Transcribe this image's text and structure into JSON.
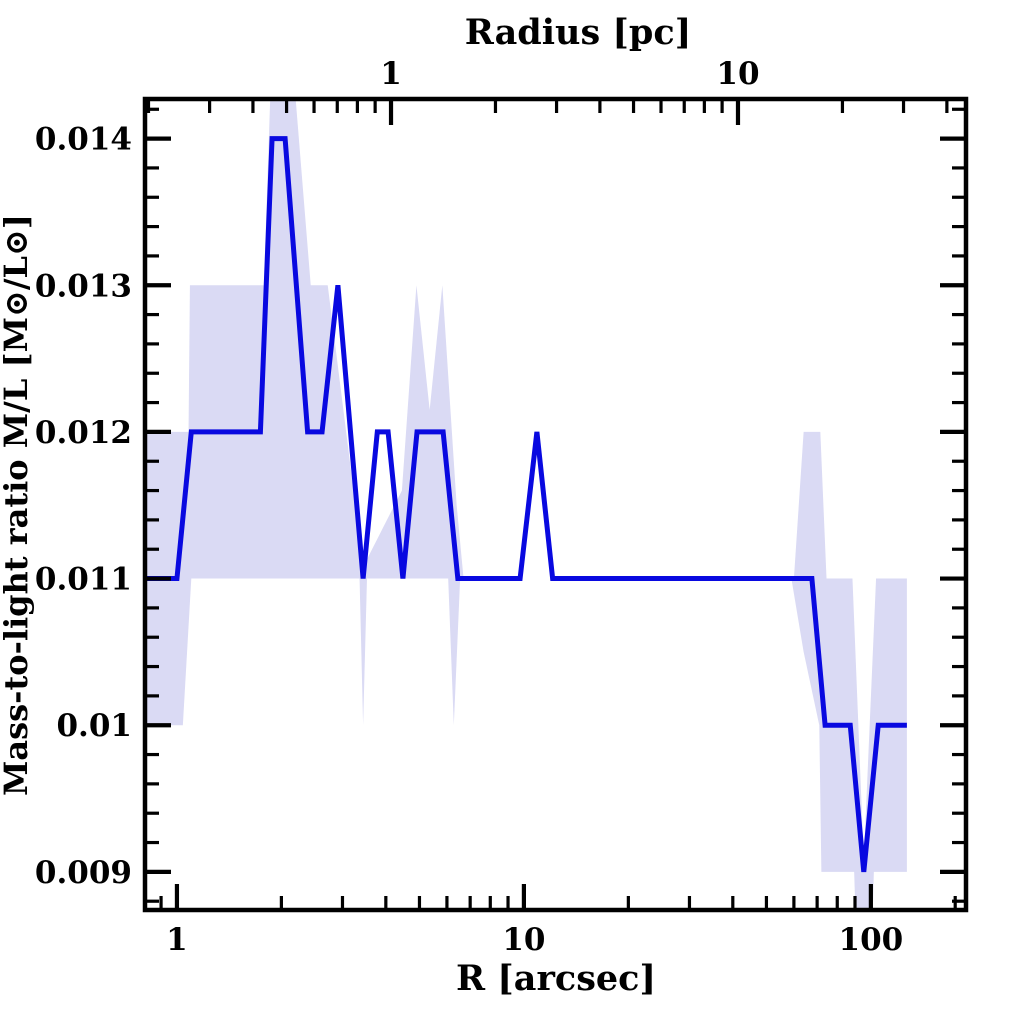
{
  "chart_data": {
    "type": "line",
    "title": "",
    "grid": false,
    "legend": "none",
    "colors": {
      "line": "#0909e0",
      "band": "#dadaf4",
      "frame": "#000000",
      "background": "#ffffff"
    },
    "x_axis": {
      "label": "R [arcsec]",
      "scale": "log",
      "range": [
        0.809,
        188
      ],
      "major_ticks": [
        1,
        10,
        100
      ],
      "tick_labels": [
        "1",
        "10",
        "100"
      ],
      "minor_ticks": [
        0.9,
        2,
        3,
        4,
        5,
        6,
        7,
        8,
        9,
        20,
        30,
        40,
        50,
        60,
        70,
        80,
        90,
        175
      ]
    },
    "top_axis": {
      "label": "Radius [pc]",
      "scale": "log",
      "arcsec_per_pc": 4.14,
      "major_ticks": [
        1,
        10
      ],
      "tick_labels": [
        "1",
        "10"
      ],
      "minor_ticks": [
        0.2,
        0.3,
        0.4,
        0.5,
        0.6,
        0.7,
        0.8,
        0.9,
        2,
        3,
        4,
        5,
        6,
        7,
        8,
        9,
        20,
        30,
        40
      ]
    },
    "y_axis": {
      "label": "Mass-to-light ratio M/L [M⊙/L⊙]",
      "scale": "linear",
      "range": [
        0.00874,
        0.01427
      ],
      "major_ticks": [
        0.009,
        0.01,
        0.011,
        0.012,
        0.013,
        0.014
      ],
      "tick_labels": [
        "0.009",
        "0.01",
        "0.011",
        "0.012",
        "0.013",
        "0.014"
      ],
      "minor_tick_step": 0.0002
    },
    "series": [
      {
        "name": "mass-to-light ratio profile",
        "color": "#0909e0",
        "points": [
          [
            0.81,
            0.011
          ],
          [
            1.0,
            0.011
          ],
          [
            1.1,
            0.012
          ],
          [
            1.74,
            0.012
          ],
          [
            1.88,
            0.014
          ],
          [
            2.05,
            0.014
          ],
          [
            2.38,
            0.012
          ],
          [
            2.62,
            0.012
          ],
          [
            2.91,
            0.013
          ],
          [
            3.44,
            0.011
          ],
          [
            3.78,
            0.012
          ],
          [
            4.06,
            0.012
          ],
          [
            4.48,
            0.011
          ],
          [
            4.92,
            0.012
          ],
          [
            5.85,
            0.012
          ],
          [
            6.45,
            0.011
          ],
          [
            9.75,
            0.011
          ],
          [
            10.9,
            0.012
          ],
          [
            12.1,
            0.011
          ],
          [
            67.6,
            0.011
          ],
          [
            73.8,
            0.01
          ],
          [
            87.2,
            0.01
          ],
          [
            95.4,
            0.009
          ],
          [
            105,
            0.01
          ],
          [
            127,
            0.01
          ]
        ]
      }
    ],
    "band": {
      "name": "uncertainty band",
      "color": "#dadaf4",
      "upper": [
        [
          0.81,
          0.012
        ],
        [
          1.08,
          0.012
        ],
        [
          1.09,
          0.013
        ],
        [
          1.78,
          0.013
        ],
        [
          1.86,
          0.01432
        ],
        [
          2.19,
          0.01432
        ],
        [
          2.43,
          0.013
        ],
        [
          2.72,
          0.013
        ],
        [
          3.44,
          0.01108
        ],
        [
          4.45,
          0.0116
        ],
        [
          4.9,
          0.013
        ],
        [
          5.35,
          0.01215
        ],
        [
          5.82,
          0.013
        ],
        [
          6.4,
          0.0115
        ],
        [
          6.7,
          0.011
        ],
        [
          60,
          0.011
        ],
        [
          64,
          0.012
        ],
        [
          71.5,
          0.012
        ],
        [
          74.5,
          0.011
        ],
        [
          88.5,
          0.011
        ],
        [
          95.4,
          0.00908
        ],
        [
          103.5,
          0.011
        ],
        [
          127,
          0.011
        ]
      ],
      "lower": [
        [
          0.81,
          0.01
        ],
        [
          1.04,
          0.01
        ],
        [
          1.1,
          0.011
        ],
        [
          3.36,
          0.011
        ],
        [
          3.44,
          0.01
        ],
        [
          3.53,
          0.011
        ],
        [
          6.05,
          0.011
        ],
        [
          6.28,
          0.01
        ],
        [
          6.55,
          0.011
        ],
        [
          59,
          0.011
        ],
        [
          64,
          0.0105
        ],
        [
          71,
          0.01
        ],
        [
          72,
          0.009
        ],
        [
          89.5,
          0.009
        ],
        [
          91,
          0.00845
        ],
        [
          100.5,
          0.00845
        ],
        [
          102,
          0.009
        ],
        [
          127,
          0.009
        ]
      ]
    }
  }
}
